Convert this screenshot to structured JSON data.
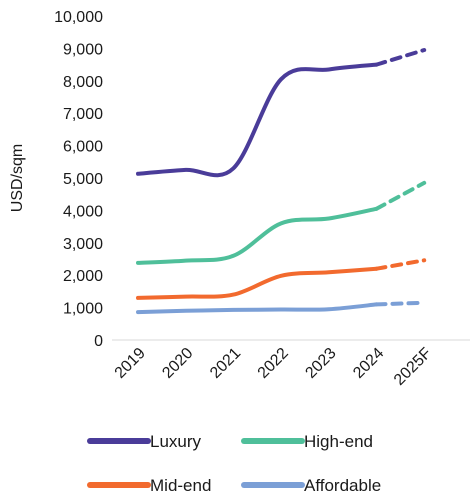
{
  "chart_data": {
    "type": "line",
    "title": "",
    "xlabel": "",
    "ylabel": "USD/sqm",
    "x": [
      "2019",
      "2020",
      "2021",
      "2022",
      "2023",
      "2024",
      "2025F"
    ],
    "ylim": [
      0,
      10000
    ],
    "yticks": [
      "0",
      "1,000",
      "2,000",
      "3,000",
      "4,000",
      "5,000",
      "6,000",
      "7,000",
      "8,000",
      "9,000",
      "10,000"
    ],
    "grid": false,
    "legend_position": "bottom",
    "forecast_style": "dashed segment from 2024 to 2025F",
    "series": [
      {
        "name": "Luxury",
        "color": "#4a3c99",
        "values": [
          5130,
          5250,
          5300,
          8050,
          8350,
          8500,
          8950
        ]
      },
      {
        "name": "High-end",
        "color": "#4fbf9a",
        "values": [
          2380,
          2450,
          2600,
          3600,
          3750,
          4050,
          4850
        ]
      },
      {
        "name": "Mid-end",
        "color": "#f26a2e",
        "values": [
          1300,
          1340,
          1400,
          1980,
          2090,
          2200,
          2460
        ]
      },
      {
        "name": "Affordable",
        "color": "#7b9fd6",
        "values": [
          860,
          900,
          930,
          940,
          950,
          1100,
          1150
        ]
      }
    ]
  }
}
